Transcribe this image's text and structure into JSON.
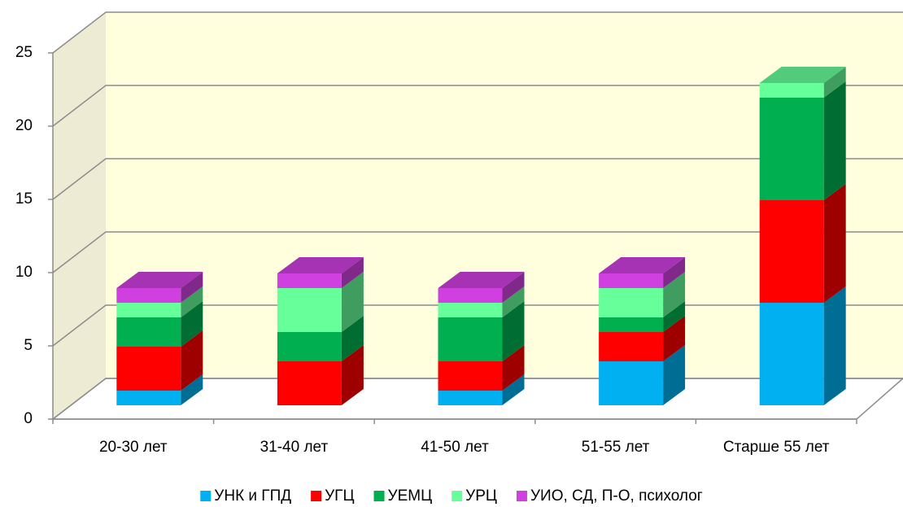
{
  "chart_data": {
    "type": "bar3d_stacked",
    "categories": [
      "20-30 лет",
      "31-40 лет",
      "41-50 лет",
      "51-55 лет",
      "Старше 55 лет"
    ],
    "series": [
      {
        "name": "УНК и ГПД",
        "color": "#00b0f0",
        "values": [
          1,
          0,
          1,
          3,
          7
        ]
      },
      {
        "name": "УГЦ",
        "color": "#ff0000",
        "values": [
          3,
          3,
          2,
          2,
          7
        ]
      },
      {
        "name": "УЕМЦ",
        "color": "#00b050",
        "values": [
          2,
          2,
          3,
          1,
          7
        ]
      },
      {
        "name": "УРЦ",
        "color": "#66ff99",
        "values": [
          1,
          3,
          1,
          2,
          1
        ]
      },
      {
        "name": "УИО, СД, П-О, психолог",
        "color": "#d040e0",
        "values": [
          1,
          1,
          1,
          1,
          0
        ]
      }
    ],
    "ylim": [
      0,
      25
    ],
    "yticks": [
      0,
      5,
      10,
      15,
      20,
      25
    ],
    "grid": true,
    "legend": "bottom"
  }
}
